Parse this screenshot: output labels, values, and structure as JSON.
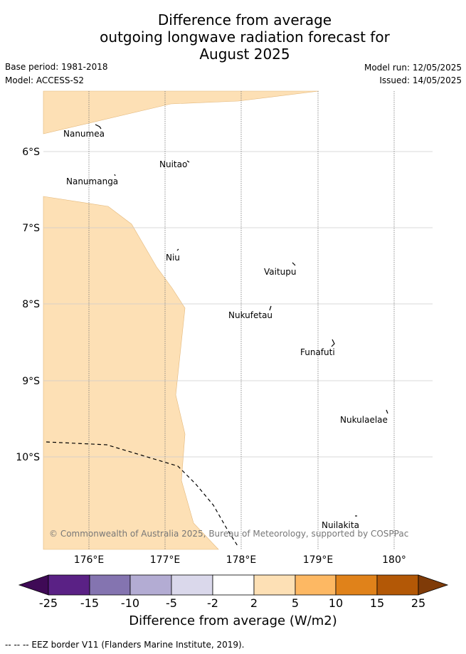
{
  "header": {
    "title_lines": [
      "Difference from average",
      "outgoing longwave radiation forecast for",
      "August 2025"
    ],
    "base_period": "Base period: 1981-2018",
    "model": "Model: ACCESS-S2",
    "model_run": "Model run: 12/05/2025",
    "issued": "Issued: 14/05/2025"
  },
  "map": {
    "lon_ticks": [
      "176°E",
      "177°E",
      "178°E",
      "179°E",
      "180°"
    ],
    "lat_ticks": [
      "6°S",
      "7°S",
      "8°S",
      "9°S",
      "10°S"
    ],
    "places": [
      "Nanumea",
      "Nuitao",
      "Nanumanga",
      "Niu",
      "Vaitupu",
      "Nukufetau",
      "Funafuti",
      "Nukulaelae",
      "Nuilakita"
    ],
    "anomaly_fill_color": "#fde0b5",
    "copyright": "© Commonwealth of Australia 2025, Bureau of Meteorology, supported by COSPPac"
  },
  "colorbar": {
    "tick_labels": [
      "-25",
      "-15",
      "-10",
      "-5",
      "-2",
      "2",
      "5",
      "10",
      "15",
      "25"
    ],
    "colors": [
      "#3f0a56",
      "#5a2185",
      "#8474b0",
      "#b3acd3",
      "#dad8eb",
      "#ffffff",
      "#fde0b5",
      "#fdb863",
      "#e0821a",
      "#b35806",
      "#7f3b08"
    ],
    "label": "Difference from average (W/m2)"
  },
  "footnote": "--  --  -- EEZ border V11 (Flanders Marine Institute, 2019)."
}
